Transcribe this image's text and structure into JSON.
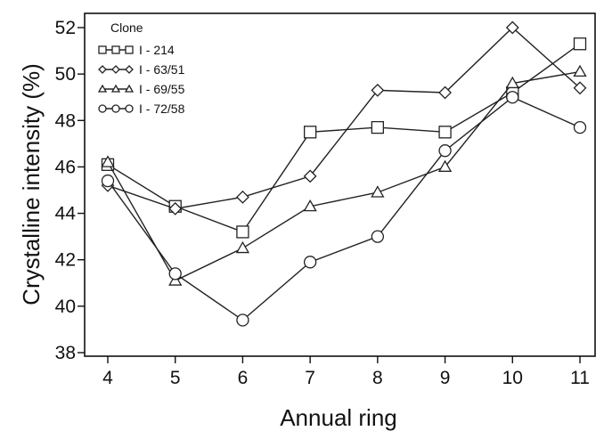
{
  "chart_data": {
    "type": "line",
    "title": "",
    "xlabel": "Annual ring",
    "ylabel": "Crystalline intensity (%)",
    "x": [
      4,
      5,
      6,
      7,
      8,
      9,
      10,
      11
    ],
    "xlim": [
      4,
      11
    ],
    "ylim": [
      38,
      52
    ],
    "yticks": [
      38,
      40,
      42,
      44,
      46,
      48,
      50,
      52
    ],
    "grid": false,
    "legend": {
      "title": "Clone",
      "placement": "top-left"
    },
    "series": [
      {
        "name": "I - 214",
        "marker": "square",
        "values": [
          46.1,
          44.3,
          43.2,
          47.5,
          47.7,
          47.5,
          49.2,
          51.3
        ]
      },
      {
        "name": "I - 63/51",
        "marker": "diamond",
        "values": [
          45.2,
          44.2,
          44.7,
          45.6,
          49.3,
          49.2,
          52.0,
          49.4
        ]
      },
      {
        "name": "I - 69/55",
        "marker": "triangle",
        "values": [
          46.2,
          41.1,
          42.5,
          44.3,
          44.9,
          46.0,
          49.6,
          50.1
        ]
      },
      {
        "name": "I - 72/58",
        "marker": "circle",
        "values": [
          45.4,
          41.4,
          39.4,
          41.9,
          43.0,
          46.7,
          49.0,
          47.7
        ]
      }
    ]
  }
}
